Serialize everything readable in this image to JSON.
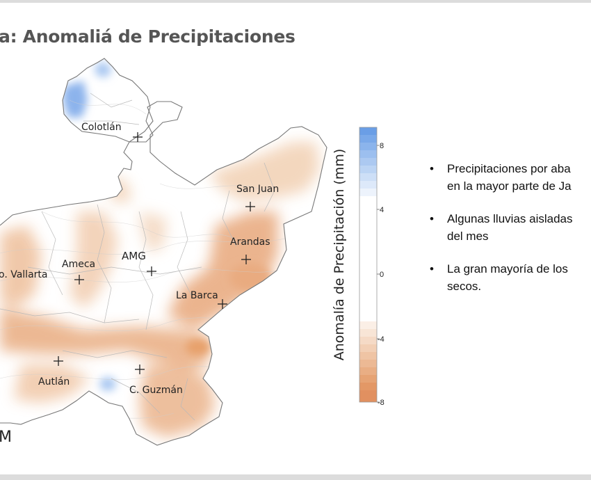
{
  "slide": {
    "title": "a: Anomaliá de Precipitaciones",
    "bottom_label": "M",
    "colorbar_title": "Anomalía de Precipitación (mm)",
    "colorbar_ticks": [
      "8",
      "4",
      "0",
      "-4",
      "-8"
    ],
    "bullets": [
      "Precipitaciones por aba\nen la mayor parte de Ja",
      "Algunas lluvias aisladas\ndel mes",
      "La gran mayoría de los\nsecos."
    ]
  },
  "map": {
    "cities": [
      {
        "name": "Colotlán"
      },
      {
        "name": "San Juan"
      },
      {
        "name": "Arandas"
      },
      {
        "name": "AMG"
      },
      {
        "name": "Ameca"
      },
      {
        "name": "o. Vallarta"
      },
      {
        "name": "La Barca"
      },
      {
        "name": "Autlán"
      },
      {
        "name": "C. Guzmán"
      }
    ],
    "colors": {
      "wet": "#4f8fe0",
      "dry": "#e8a068",
      "neutral": "#ffffff"
    }
  }
}
